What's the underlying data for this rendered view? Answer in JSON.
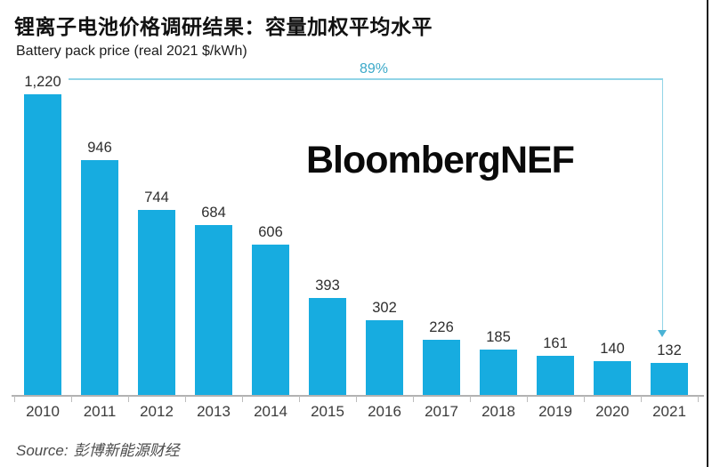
{
  "header": {
    "title": "锂离子电池价格调研结果：容量加权平均水平",
    "subtitle": "Battery pack price (real 2021 $/kWh)"
  },
  "watermark": "BloombergNEF",
  "annotation": {
    "text": "89%"
  },
  "footer": {
    "source_label": "Source:",
    "source_value": "彭博新能源财经"
  },
  "chart_data": {
    "type": "bar",
    "title": "锂离子电池价格调研结果：容量加权平均水平",
    "subtitle": "Battery pack price (real 2021 $/kWh)",
    "xlabel": "",
    "ylabel": "Battery pack price (real 2021 $/kWh)",
    "categories": [
      "2010",
      "2011",
      "2012",
      "2013",
      "2014",
      "2015",
      "2016",
      "2017",
      "2018",
      "2019",
      "2020",
      "2021"
    ],
    "values": [
      1220,
      946,
      744,
      684,
      606,
      393,
      302,
      226,
      185,
      161,
      140,
      132
    ],
    "value_labels": [
      "1,220",
      "946",
      "744",
      "684",
      "606",
      "393",
      "302",
      "226",
      "185",
      "161",
      "140",
      "132"
    ],
    "ylim": [
      0,
      1220
    ],
    "grid": false,
    "legend": false,
    "annotation": {
      "text": "89%",
      "from_category": "2010",
      "to_category": "2021"
    }
  },
  "colors": {
    "bar": "#17ace0",
    "annotation_line": "#92d5e7",
    "annotation_text": "#3ba9c9",
    "axis": "#b2b2b2",
    "title_text": "#111111",
    "source_text": "#4a4a4a",
    "edge_line": "#1c1c1c"
  }
}
